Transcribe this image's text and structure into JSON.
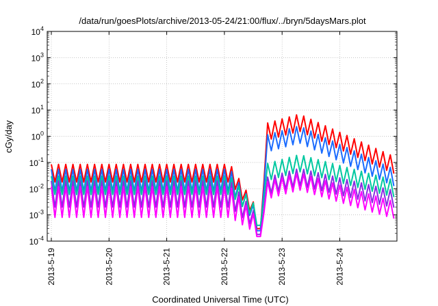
{
  "chart_data": {
    "type": "line",
    "title": "/data/run/goesPlots/archive/2013-05-24/21:00/flux/../bryn/5daysMars.plot",
    "xlabel": "Coordinated Universal Time (UTC)",
    "ylabel": "cGy/day",
    "yscale": "log",
    "ylim": [
      0.0001,
      10000
    ],
    "xlim_days": [
      0,
      5.85
    ],
    "grid": true,
    "x_tick_labels": [
      "2013-5-19",
      "2013-5-20",
      "2013-5-21",
      "2013-5-22",
      "2013-5-23",
      "2013-5-24"
    ],
    "y_tick_labels": [
      {
        "base": "10",
        "exp": "4"
      },
      {
        "base": "10",
        "exp": "3"
      },
      {
        "base": "10",
        "exp": "2"
      },
      {
        "base": "10",
        "exp": "1"
      },
      {
        "base": "10",
        "exp": "0"
      },
      {
        "base": "10",
        "exp": "-1"
      },
      {
        "base": "10",
        "exp": "-2"
      },
      {
        "base": "10",
        "exp": "-3"
      },
      {
        "base": "10",
        "exp": "-4"
      }
    ],
    "series": [
      {
        "name": "series-red",
        "color": "#ff0000",
        "quiet_peak": 0.085,
        "quiet_trough": 0.018,
        "event_peak": 7.0,
        "event_end": 0.15,
        "dip": 0.0003
      },
      {
        "name": "series-blue",
        "color": "#1a6cff",
        "quiet_peak": 0.055,
        "quiet_trough": 0.008,
        "event_peak": 2.5,
        "event_end": 0.05,
        "dip": 0.00025
      },
      {
        "name": "series-teal",
        "color": "#00c8a0",
        "quiet_peak": 0.03,
        "quiet_trough": 0.006,
        "event_peak": 0.2,
        "event_end": 0.02,
        "dip": 0.0004
      },
      {
        "name": "series-purple",
        "color": "#8a2be2",
        "quiet_peak": 0.02,
        "quiet_trough": 0.002,
        "event_peak": 0.06,
        "event_end": 0.008,
        "dip": 0.00018
      },
      {
        "name": "series-magenta",
        "color": "#ff00ff",
        "quiet_peak": 0.012,
        "quiet_trough": 0.0008,
        "event_peak": 0.04,
        "event_end": 0.003,
        "dip": 0.00015
      }
    ],
    "event_onset_day": 3.65,
    "event_peak_day": 4.3,
    "oscillation_period_days": 0.125
  }
}
